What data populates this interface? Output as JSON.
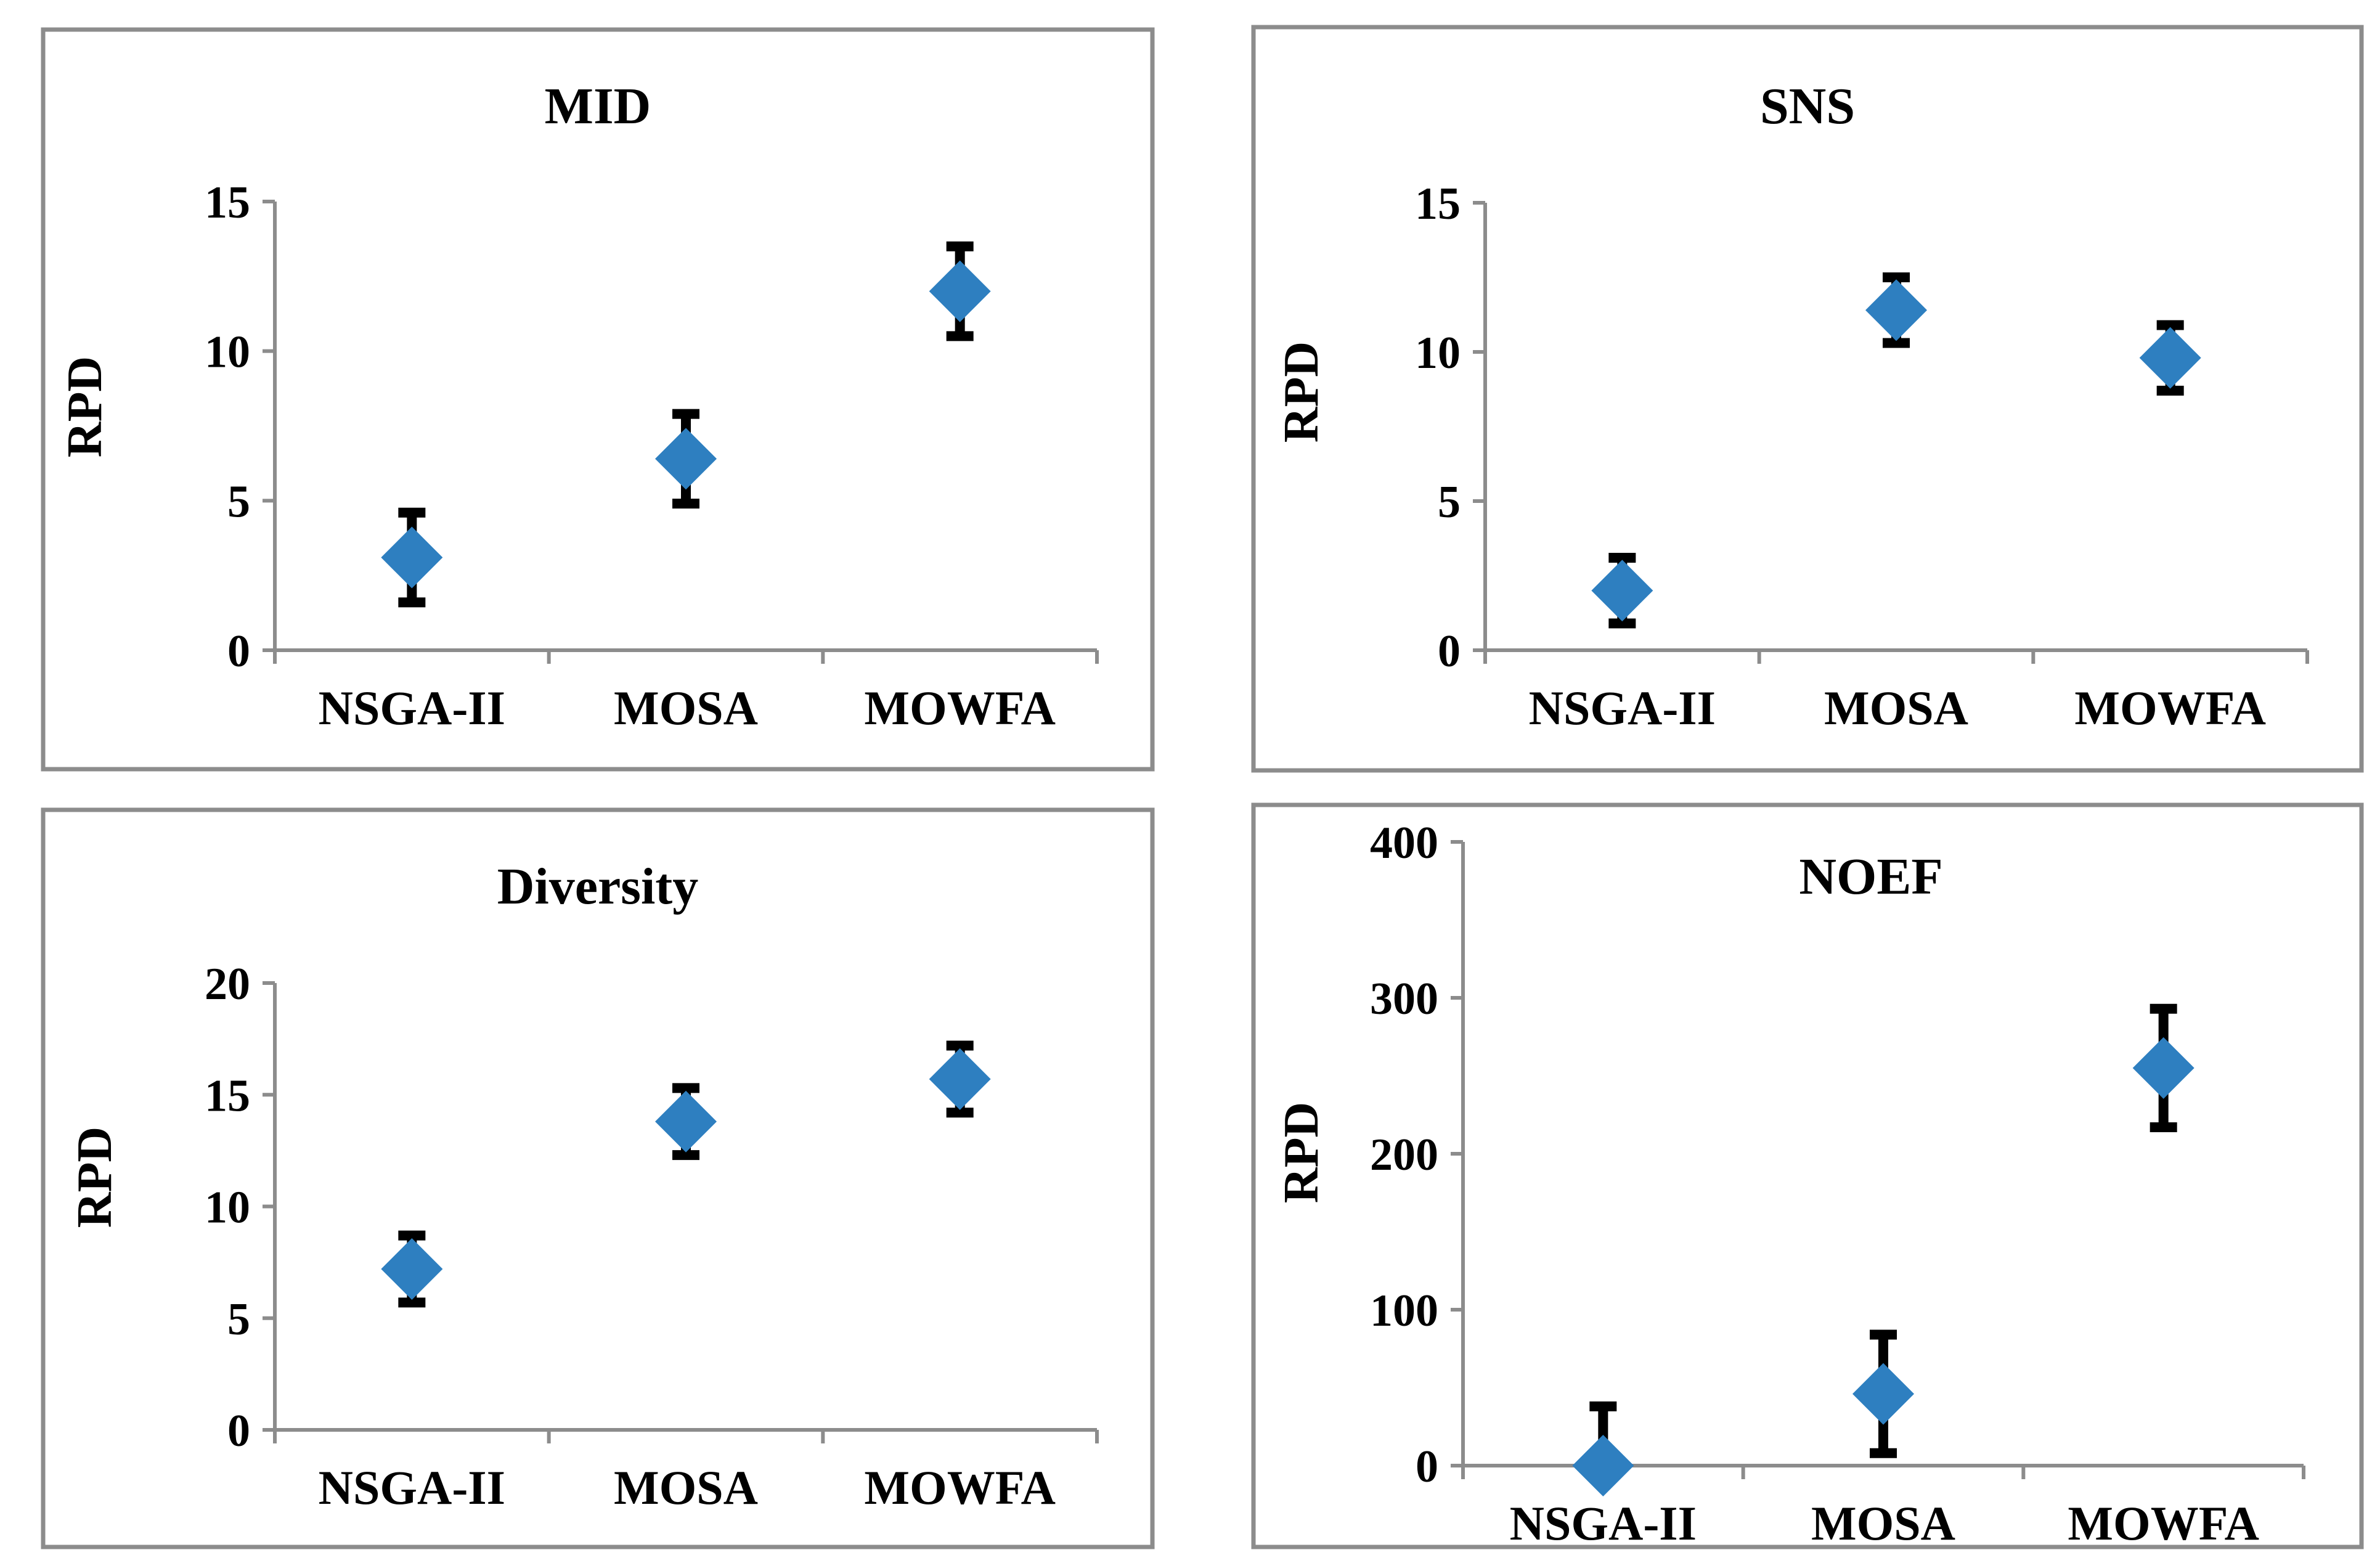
{
  "chart_data": [
    {
      "type": "scatter",
      "title": "MID",
      "ylabel": "RPD",
      "xlabel": "",
      "categories": [
        "NSGA-II",
        "MOSA",
        "MOWFA"
      ],
      "values": [
        3.1,
        6.4,
        12.0
      ],
      "error": [
        1.5,
        1.5,
        1.5
      ],
      "ylim": [
        0,
        15
      ],
      "yticks": [
        "0",
        "5",
        "10",
        "15"
      ],
      "marker_color": "#2e7fc0"
    },
    {
      "type": "scatter",
      "title": "SNS",
      "ylabel": "RPD",
      "xlabel": "",
      "categories": [
        "NSGA-II",
        "MOSA",
        "MOWFA"
      ],
      "values": [
        2.0,
        11.4,
        9.8
      ],
      "error": [
        1.1,
        1.1,
        1.1
      ],
      "ylim": [
        0,
        15
      ],
      "yticks": [
        "0",
        "5",
        "10",
        "15"
      ],
      "marker_color": "#2e7fc0"
    },
    {
      "type": "scatter",
      "title": "Diversity",
      "ylabel": "RPD",
      "xlabel": "",
      "categories": [
        "NSGA-II",
        "MOSA",
        "MOWFA"
      ],
      "values": [
        7.2,
        13.8,
        15.7
      ],
      "error": [
        1.5,
        1.5,
        1.5
      ],
      "ylim": [
        0,
        20
      ],
      "yticks": [
        "0",
        "5",
        "10",
        "15",
        "20"
      ],
      "marker_color": "#2e7fc0"
    },
    {
      "type": "scatter",
      "title": "NOEF",
      "ylabel": "RPD",
      "xlabel": "",
      "categories": [
        "NSGA-II",
        "MOSA",
        "MOWFA"
      ],
      "values": [
        0,
        46,
        255
      ],
      "error": [
        38,
        38,
        38
      ],
      "ylim": [
        0,
        400
      ],
      "yticks": [
        "0",
        "100",
        "200",
        "300",
        "400"
      ],
      "marker_color": "#2e7fc0"
    }
  ]
}
